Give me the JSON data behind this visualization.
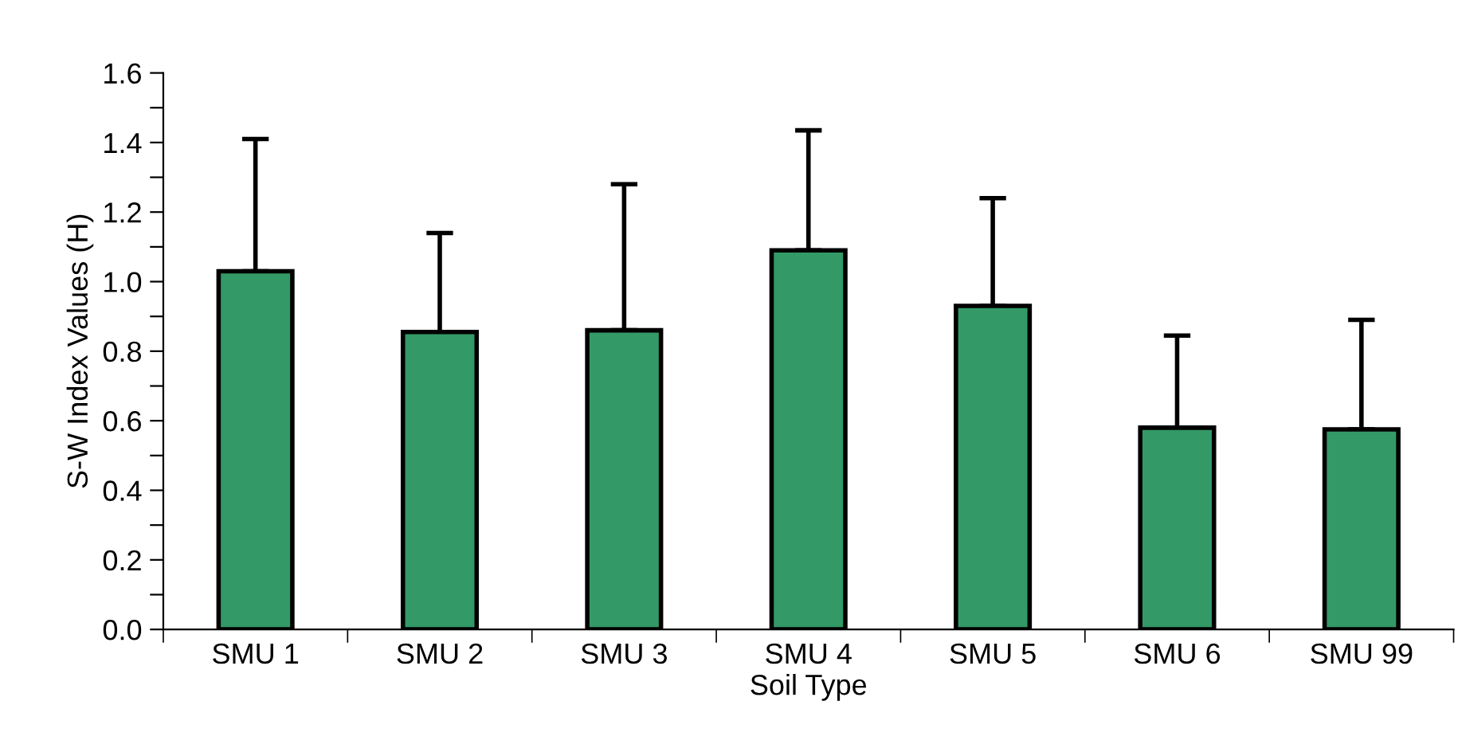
{
  "chart_data": {
    "type": "bar",
    "xlabel": "Soil Type",
    "ylabel": "S-W Index Values (H)",
    "categories": [
      "SMU 1",
      "SMU 2",
      "SMU 3",
      "SMU 4",
      "SMU 5",
      "SMU 6",
      "SMU 99"
    ],
    "values": [
      1.03,
      0.855,
      0.86,
      1.09,
      0.93,
      0.58,
      0.575
    ],
    "errors": [
      [
        1.03,
        1.41
      ],
      [
        0.855,
        1.14
      ],
      [
        0.86,
        1.28
      ],
      [
        1.09,
        1.435
      ],
      [
        0.93,
        1.24
      ],
      [
        0.58,
        0.845
      ],
      [
        0.575,
        0.89
      ]
    ],
    "color": "#339966",
    "ylim": [
      0,
      1.6
    ],
    "yticks": [
      {
        "value": 0,
        "label": "0.0"
      },
      {
        "value": 0.1,
        "label": null
      },
      {
        "value": 0.2,
        "label": "0.2"
      },
      {
        "value": 0.3,
        "label": null
      },
      {
        "value": 0.4,
        "label": "0.4"
      },
      {
        "value": 0.5,
        "label": null
      },
      {
        "value": 0.6,
        "label": "0.6"
      },
      {
        "value": 0.7,
        "label": null
      },
      {
        "value": 0.8,
        "label": "0.8"
      },
      {
        "value": 0.9,
        "label": null
      },
      {
        "value": 1.0,
        "label": "1.0"
      },
      {
        "value": 1.1,
        "label": null
      },
      {
        "value": 1.2,
        "label": "1.2"
      },
      {
        "value": 1.3,
        "label": null
      },
      {
        "value": 1.4,
        "label": "1.4"
      },
      {
        "value": 1.5,
        "label": null
      },
      {
        "value": 1.6,
        "label": "1.6"
      }
    ],
    "grid": false,
    "legend": false
  }
}
